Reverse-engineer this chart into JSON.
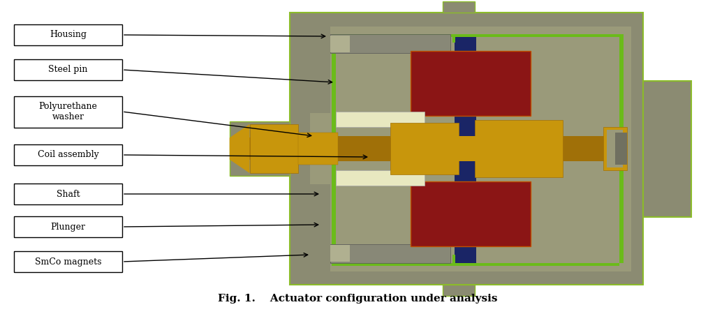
{
  "title": "Fig. 1.    Actuator configuration under analysis",
  "title_fontsize": 11,
  "title_fontweight": "bold",
  "background_color": "#ffffff",
  "labels": [
    "Housing",
    "Steel pin",
    "Polyurethane\nwasher",
    "Coil assembly",
    "Shaft",
    "Plunger",
    "SmCo magnets"
  ],
  "colors": {
    "housing": "#8B8B72",
    "housing_dark": "#707060",
    "housing_outline": "#8BBB2A",
    "coil": "#C8960C",
    "coil_dark": "#A07008",
    "magnet": "#8B1515",
    "magnet_outline": "#C05000",
    "blue_gap": "#1A2566",
    "green_strip": "#6BBB1A",
    "cream_washer": "#E8E8C0",
    "steel_pin": "#888877",
    "inner_cavity": "#9A9A7A",
    "light_gray": "#B0B090"
  }
}
